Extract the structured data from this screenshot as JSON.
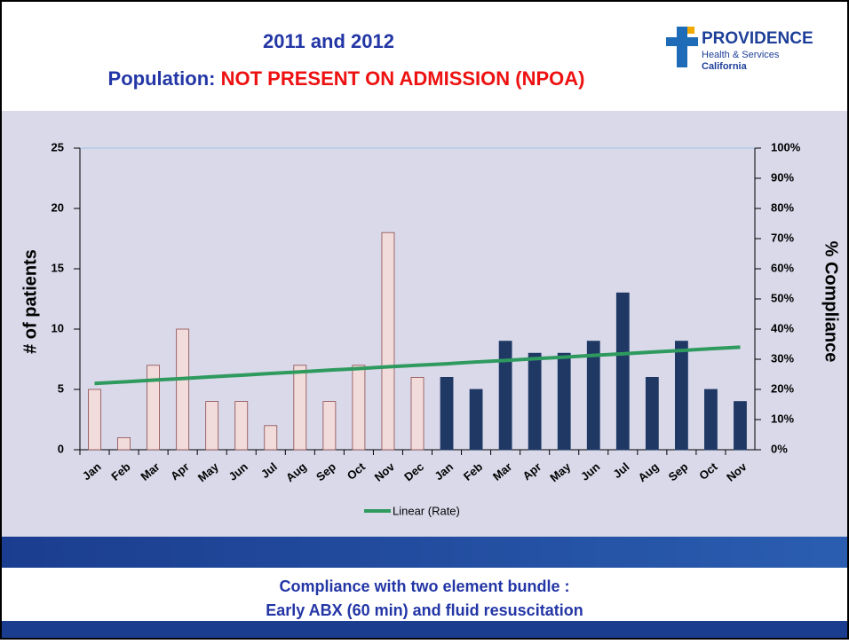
{
  "header": {
    "title_line1": "2011 and 2012",
    "title_prefix": "Population: ",
    "title_highlight": "NOT PRESENT ON ADMISSION (NPOA)",
    "logo_name": "PROVIDENCE",
    "logo_sub1": "Health & Services",
    "logo_sub2": "California"
  },
  "chart_data": {
    "type": "bar",
    "categories": [
      "Jan",
      "Feb",
      "Mar",
      "Apr",
      "May",
      "Jun",
      "Jul",
      "Aug",
      "Sep",
      "Oct",
      "Nov",
      "Dec",
      "Jan",
      "Feb",
      "Mar",
      "Apr",
      "May",
      "Jun",
      "Jul",
      "Aug",
      "Sep",
      "Oct",
      "Nov"
    ],
    "series": [
      {
        "color": "#f2dcdb",
        "values": [
          5,
          1,
          7,
          10,
          4,
          4,
          2,
          7,
          4,
          7,
          18,
          6,
          null,
          null,
          null,
          null,
          null,
          null,
          null,
          null,
          null,
          null,
          null
        ]
      },
      {
        "color": "#1f3864",
        "values": [
          null,
          null,
          null,
          null,
          null,
          null,
          null,
          null,
          null,
          null,
          null,
          null,
          6,
          5,
          9,
          8,
          8,
          9,
          13,
          6,
          9,
          5,
          4
        ]
      },
      {
        "name": "Linear (Rate)",
        "color": "#2e9a5e",
        "axis": "y2",
        "type": "line",
        "values": [
          22.0,
          22.5,
          23.1,
          23.6,
          24.2,
          24.7,
          25.3,
          25.8,
          26.4,
          26.9,
          27.5,
          28.0,
          28.5,
          29.1,
          29.6,
          30.2,
          30.7,
          31.3,
          31.8,
          32.4,
          32.9,
          33.5,
          34.0
        ]
      }
    ],
    "ylabel": "# of patients",
    "y2label": "% Compliance",
    "ylim": [
      0,
      25
    ],
    "yticks": [
      0,
      5,
      10,
      15,
      20,
      25
    ],
    "y2lim": [
      0,
      100
    ],
    "y2ticks": [
      {
        "value": 0,
        "label": "0%"
      },
      {
        "value": 10,
        "label": "10%"
      },
      {
        "value": 20,
        "label": "20%"
      },
      {
        "value": 30,
        "label": "30%"
      },
      {
        "value": 40,
        "label": "40%"
      },
      {
        "value": 50,
        "label": "50%"
      },
      {
        "value": 60,
        "label": "60%"
      },
      {
        "value": 70,
        "label": "70%"
      },
      {
        "value": 80,
        "label": "80%"
      },
      {
        "value": 90,
        "label": "90%"
      },
      {
        "value": 100,
        "label": "100%"
      }
    ],
    "legend": "bottom"
  },
  "footer": {
    "line1": "Compliance with  two element bundle :",
    "line2": "Early ABX (60 min)  and fluid resuscitation"
  }
}
